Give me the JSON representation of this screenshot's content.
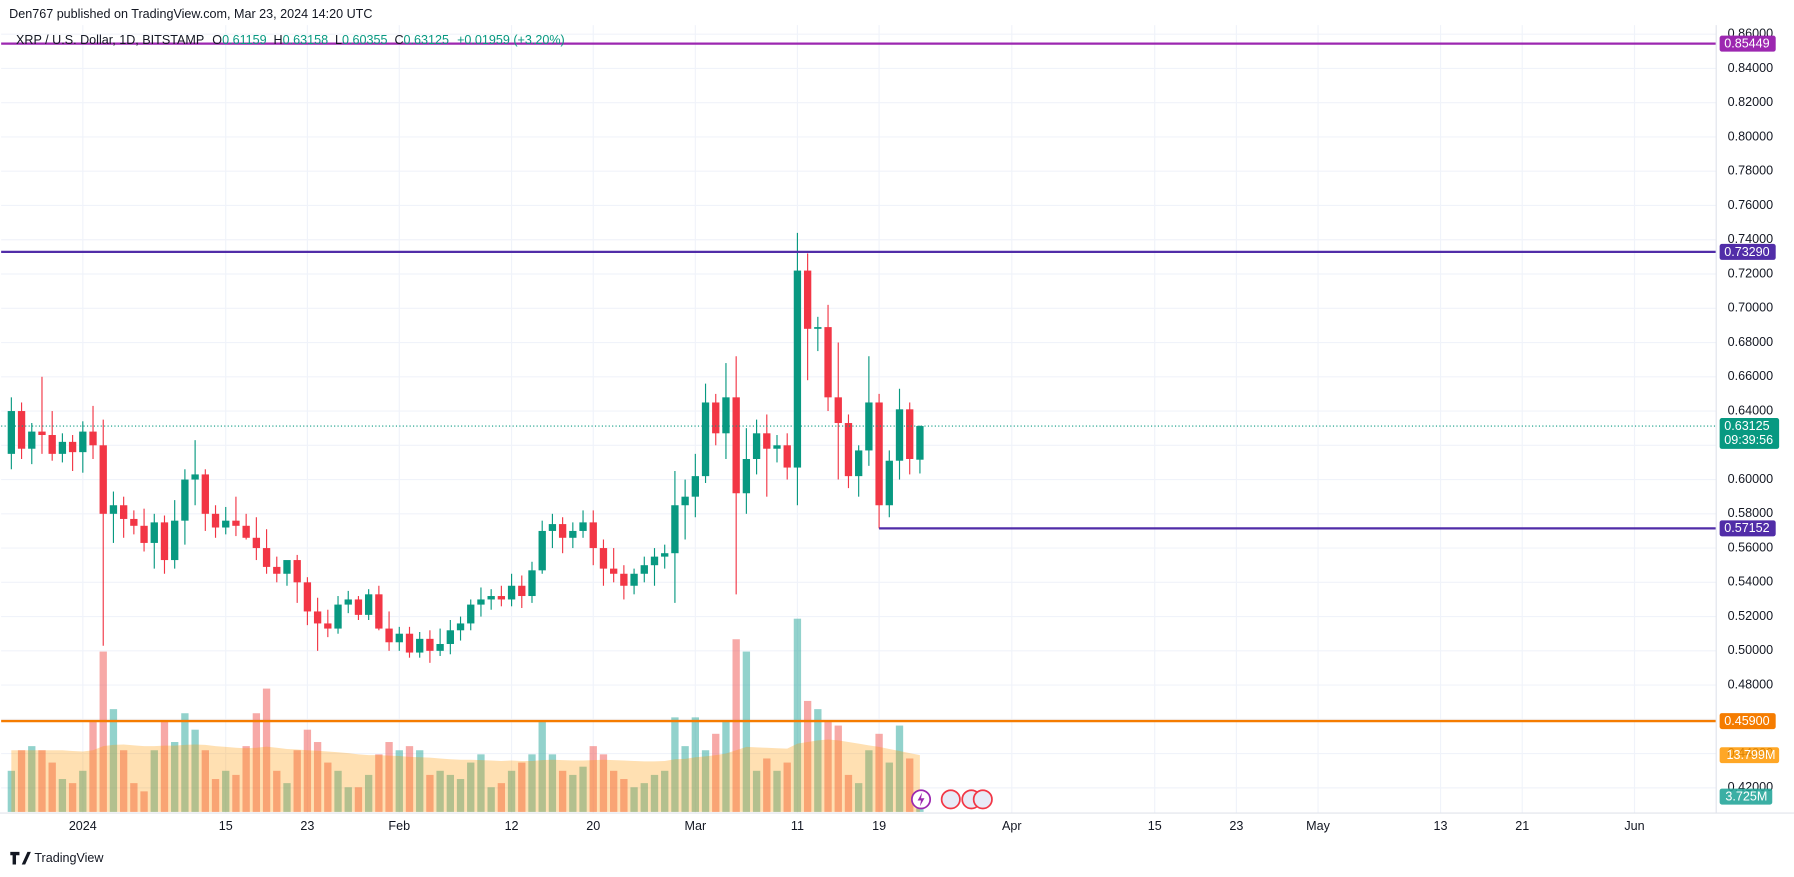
{
  "header": {
    "published": "Den767 published on TradingView.com, Mar 23, 2024 14:20 UTC",
    "brand": "TradingView"
  },
  "chart_data": {
    "type": "candlestick",
    "legend": {
      "symbol": "XRP / U.S. Dollar, 1D, BITSTAMP",
      "o": "O",
      "h": "H",
      "l": "L",
      "c": "C",
      "change": "+0.01959 (+3.20%)"
    },
    "countdown": "09:39:56",
    "up_color": "#089981",
    "down_color": "#f23645",
    "grid": true,
    "xlim": [
      "2023-12-24",
      "2024-06-09"
    ],
    "xticks": [
      {
        "value": "2024-01-01",
        "label": "2024"
      },
      {
        "value": "2024-01-15",
        "label": "15"
      },
      {
        "value": "2024-01-23",
        "label": "23"
      },
      {
        "value": "2024-02-01",
        "label": "Feb"
      },
      {
        "value": "2024-02-12",
        "label": "12"
      },
      {
        "value": "2024-02-20",
        "label": "20"
      },
      {
        "value": "2024-03-01",
        "label": "Mar"
      },
      {
        "value": "2024-03-11",
        "label": "11"
      },
      {
        "value": "2024-03-19",
        "label": "19"
      },
      {
        "value": "2024-04-01",
        "label": "Apr"
      },
      {
        "value": "2024-04-15",
        "label": "15"
      },
      {
        "value": "2024-04-23",
        "label": "23"
      },
      {
        "value": "2024-05-01",
        "label": "May"
      },
      {
        "value": "2024-05-13",
        "label": "13"
      },
      {
        "value": "2024-05-21",
        "label": "21"
      },
      {
        "value": "2024-06-01",
        "label": "Jun"
      }
    ],
    "ylim": [
      0.4053,
      0.8653
    ],
    "yticks": [
      {
        "value": 0.42,
        "label": "0.42000"
      },
      {
        "value": 0.44,
        "label": "0.44000"
      },
      {
        "value": 0.46,
        "label": "0.46000"
      },
      {
        "value": 0.48,
        "label": "0.48000"
      },
      {
        "value": 0.5,
        "label": "0.50000"
      },
      {
        "value": 0.52,
        "label": "0.52000"
      },
      {
        "value": 0.54,
        "label": "0.54000"
      },
      {
        "value": 0.56,
        "label": "0.56000"
      },
      {
        "value": 0.58,
        "label": "0.58000"
      },
      {
        "value": 0.6,
        "label": "0.60000"
      },
      {
        "value": 0.62,
        "label": "0.62000"
      },
      {
        "value": 0.64,
        "label": "0.64000"
      },
      {
        "value": 0.66,
        "label": "0.66000"
      },
      {
        "value": 0.68,
        "label": "0.68000"
      },
      {
        "value": 0.7,
        "label": "0.70000"
      },
      {
        "value": 0.72,
        "label": "0.72000"
      },
      {
        "value": 0.74,
        "label": "0.74000"
      },
      {
        "value": 0.76,
        "label": "0.76000"
      },
      {
        "value": 0.78,
        "label": "0.78000"
      },
      {
        "value": 0.8,
        "label": "0.80000"
      },
      {
        "value": 0.82,
        "label": "0.82000"
      },
      {
        "value": 0.84,
        "label": "0.84000"
      },
      {
        "value": 0.86,
        "label": "0.86000"
      }
    ],
    "x": [
      "2023-12-25",
      "2023-12-26",
      "2023-12-27",
      "2023-12-28",
      "2023-12-29",
      "2023-12-30",
      "2023-12-31",
      "2024-01-01",
      "2024-01-02",
      "2024-01-03",
      "2024-01-04",
      "2024-01-05",
      "2024-01-06",
      "2024-01-07",
      "2024-01-08",
      "2024-01-09",
      "2024-01-10",
      "2024-01-11",
      "2024-01-12",
      "2024-01-13",
      "2024-01-14",
      "2024-01-15",
      "2024-01-16",
      "2024-01-17",
      "2024-01-18",
      "2024-01-19",
      "2024-01-20",
      "2024-01-21",
      "2024-01-22",
      "2024-01-23",
      "2024-01-24",
      "2024-01-25",
      "2024-01-26",
      "2024-01-27",
      "2024-01-28",
      "2024-01-29",
      "2024-01-30",
      "2024-01-31",
      "2024-02-01",
      "2024-02-02",
      "2024-02-03",
      "2024-02-04",
      "2024-02-05",
      "2024-02-06",
      "2024-02-07",
      "2024-02-08",
      "2024-02-09",
      "2024-02-10",
      "2024-02-11",
      "2024-02-12",
      "2024-02-13",
      "2024-02-14",
      "2024-02-15",
      "2024-02-16",
      "2024-02-17",
      "2024-02-18",
      "2024-02-19",
      "2024-02-20",
      "2024-02-21",
      "2024-02-22",
      "2024-02-23",
      "2024-02-24",
      "2024-02-25",
      "2024-02-26",
      "2024-02-27",
      "2024-02-28",
      "2024-02-29",
      "2024-03-01",
      "2024-03-02",
      "2024-03-03",
      "2024-03-04",
      "2024-03-05",
      "2024-03-06",
      "2024-03-07",
      "2024-03-08",
      "2024-03-09",
      "2024-03-10",
      "2024-03-11",
      "2024-03-12",
      "2024-03-13",
      "2024-03-14",
      "2024-03-15",
      "2024-03-16",
      "2024-03-17",
      "2024-03-18",
      "2024-03-19",
      "2024-03-20",
      "2024-03-21",
      "2024-03-22",
      "2024-03-23"
    ],
    "open": [
      0.615,
      0.64,
      0.618,
      0.628,
      0.626,
      0.615,
      0.622,
      0.616,
      0.628,
      0.62,
      0.58,
      0.585,
      0.577,
      0.573,
      0.563,
      0.575,
      0.553,
      0.576,
      0.6,
      0.603,
      0.58,
      0.572,
      0.576,
      0.573,
      0.566,
      0.56,
      0.549,
      0.545,
      0.553,
      0.54,
      0.523,
      0.516,
      0.513,
      0.527,
      0.53,
      0.521,
      0.533,
      0.513,
      0.505,
      0.51,
      0.499,
      0.507,
      0.5,
      0.504,
      0.512,
      0.516,
      0.527,
      0.53,
      0.532,
      0.53,
      0.538,
      0.532,
      0.547,
      0.57,
      0.574,
      0.566,
      0.57,
      0.575,
      0.56,
      0.548,
      0.545,
      0.538,
      0.545,
      0.55,
      0.555,
      0.557,
      0.585,
      0.59,
      0.602,
      0.645,
      0.627,
      0.648,
      0.592,
      0.612,
      0.627,
      0.618,
      0.62,
      0.607,
      0.722,
      0.688,
      0.689,
      0.648,
      0.633,
      0.602,
      0.617,
      0.645,
      0.585,
      0.611,
      0.641,
      0.61159
    ],
    "high": [
      0.648,
      0.645,
      0.633,
      0.66,
      0.64,
      0.627,
      0.626,
      0.634,
      0.643,
      0.635,
      0.593,
      0.59,
      0.582,
      0.583,
      0.58,
      0.579,
      0.588,
      0.606,
      0.623,
      0.606,
      0.585,
      0.584,
      0.59,
      0.58,
      0.578,
      0.571,
      0.555,
      0.552,
      0.556,
      0.543,
      0.531,
      0.524,
      0.532,
      0.535,
      0.532,
      0.536,
      0.538,
      0.523,
      0.514,
      0.514,
      0.511,
      0.512,
      0.513,
      0.518,
      0.52,
      0.53,
      0.537,
      0.536,
      0.538,
      0.545,
      0.544,
      0.552,
      0.576,
      0.58,
      0.578,
      0.575,
      0.582,
      0.582,
      0.565,
      0.56,
      0.55,
      0.548,
      0.555,
      0.56,
      0.562,
      0.605,
      0.6,
      0.615,
      0.656,
      0.65,
      0.668,
      0.672,
      0.63,
      0.635,
      0.638,
      0.626,
      0.627,
      0.744,
      0.732,
      0.695,
      0.702,
      0.68,
      0.638,
      0.62,
      0.672,
      0.65,
      0.617,
      0.653,
      0.645,
      0.63158
    ],
    "low": [
      0.606,
      0.612,
      0.609,
      0.615,
      0.611,
      0.61,
      0.605,
      0.604,
      0.612,
      0.503,
      0.563,
      0.566,
      0.568,
      0.558,
      0.548,
      0.545,
      0.548,
      0.562,
      0.585,
      0.57,
      0.566,
      0.568,
      0.567,
      0.565,
      0.553,
      0.545,
      0.54,
      0.538,
      0.528,
      0.515,
      0.5,
      0.508,
      0.51,
      0.522,
      0.518,
      0.518,
      0.512,
      0.5,
      0.5,
      0.496,
      0.496,
      0.493,
      0.497,
      0.498,
      0.506,
      0.512,
      0.52,
      0.524,
      0.526,
      0.526,
      0.525,
      0.528,
      0.545,
      0.56,
      0.557,
      0.56,
      0.566,
      0.55,
      0.538,
      0.54,
      0.53,
      0.533,
      0.54,
      0.538,
      0.548,
      0.528,
      0.565,
      0.578,
      0.598,
      0.62,
      0.612,
      0.533,
      0.58,
      0.603,
      0.59,
      0.61,
      0.6,
      0.585,
      0.658,
      0.675,
      0.64,
      0.6,
      0.595,
      0.59,
      0.608,
      0.57152,
      0.578,
      0.6,
      0.603,
      0.60355
    ],
    "close": [
      0.64,
      0.618,
      0.628,
      0.626,
      0.615,
      0.622,
      0.616,
      0.628,
      0.62,
      0.58,
      0.585,
      0.577,
      0.573,
      0.563,
      0.575,
      0.553,
      0.576,
      0.6,
      0.603,
      0.58,
      0.572,
      0.576,
      0.573,
      0.566,
      0.56,
      0.549,
      0.545,
      0.553,
      0.54,
      0.523,
      0.516,
      0.513,
      0.527,
      0.53,
      0.521,
      0.533,
      0.513,
      0.505,
      0.51,
      0.499,
      0.507,
      0.5,
      0.504,
      0.512,
      0.516,
      0.527,
      0.53,
      0.532,
      0.53,
      0.538,
      0.532,
      0.547,
      0.57,
      0.574,
      0.566,
      0.57,
      0.575,
      0.56,
      0.548,
      0.545,
      0.538,
      0.545,
      0.55,
      0.555,
      0.557,
      0.585,
      0.59,
      0.602,
      0.645,
      0.627,
      0.648,
      0.592,
      0.612,
      0.627,
      0.618,
      0.62,
      0.607,
      0.722,
      0.688,
      0.689,
      0.648,
      0.633,
      0.602,
      0.617,
      0.645,
      0.585,
      0.611,
      0.641,
      0.612,
      0.63125
    ],
    "volume": {
      "values": [
        10,
        15,
        16,
        15,
        12,
        8,
        7,
        10,
        22,
        39,
        25,
        15,
        7,
        5,
        15,
        22,
        17,
        24,
        20,
        15,
        8,
        10,
        9,
        16,
        24,
        30,
        10,
        7,
        15,
        20,
        17,
        12,
        10,
        6,
        6,
        9,
        14,
        17,
        15,
        16,
        15,
        9,
        10,
        9,
        8,
        12,
        14,
        6,
        7,
        10,
        12,
        14,
        22,
        14,
        10,
        9,
        11,
        16,
        14,
        10,
        8,
        6,
        7,
        9,
        10,
        23,
        16,
        23,
        15,
        19,
        22,
        42,
        39,
        10,
        13,
        10,
        12,
        47,
        27,
        25,
        22,
        21,
        9,
        7,
        15,
        19,
        12,
        21,
        13,
        3.725
      ],
      "last_label": "3.725M"
    },
    "volume_ma": {
      "color": "#ff9800",
      "values": [
        15,
        15,
        15,
        15,
        15,
        15,
        14.8,
        14.7,
        15,
        16,
        16.3,
        16.4,
        16.2,
        16,
        16,
        16.1,
        16.1,
        16.3,
        16.4,
        16.3,
        16,
        15.8,
        15.6,
        15.5,
        15.6,
        15.9,
        15.6,
        15.3,
        15.2,
        15,
        14.9,
        14.7,
        14.5,
        14.3,
        14,
        13.8,
        13.8,
        13.7,
        13.6,
        13.4,
        13.3,
        13.2,
        13,
        12.8,
        12.7,
        12.7,
        12.6,
        12.5,
        12.4,
        12.5,
        12.4,
        12.4,
        12.6,
        12.7,
        12.6,
        12.5,
        12.5,
        12.6,
        12.7,
        12.6,
        12.5,
        12.4,
        12.3,
        12.3,
        12.4,
        12.8,
        12.9,
        13.3,
        13.5,
        13.8,
        14.2,
        15,
        15.8,
        15.7,
        15.6,
        15.5,
        15.4,
        16.6,
        17,
        17.4,
        17.6,
        17.4,
        17,
        16.6,
        16.2,
        15.8,
        15.3,
        14.8,
        14.3,
        13.799
      ],
      "last_label": "13.799M"
    },
    "levels": {
      "values": [
        0.85449,
        0.7329,
        0.57152,
        0.459
      ],
      "value_labels": [
        "0.85449",
        "0.73290",
        "0.57152",
        "0.45900"
      ],
      "colors": [
        "#9c27b0",
        "#512da8",
        "#512da8",
        "#f57c00"
      ],
      "starts": [
        "2023-12-24",
        "2023-12-24",
        "2024-03-19",
        "2023-12-24"
      ]
    }
  }
}
